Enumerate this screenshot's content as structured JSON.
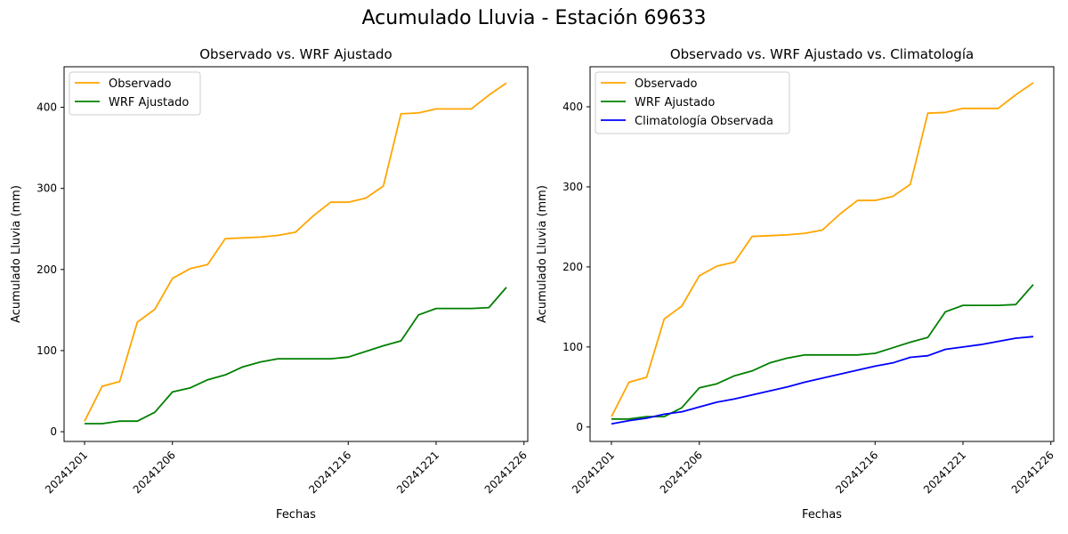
{
  "suptitle": "Acumulado Lluvia - Estación 69633",
  "chart_data": [
    {
      "type": "line",
      "title": "Observado vs. WRF Ajustado",
      "xlabel": "Fechas",
      "ylabel": "Acumulado Lluvia (mm)",
      "x": [
        "20241201",
        "20241202",
        "20241203",
        "20241204",
        "20241205",
        "20241206",
        "20241207",
        "20241208",
        "20241209",
        "20241210",
        "20241211",
        "20241212",
        "20241213",
        "20241214",
        "20241215",
        "20241216",
        "20241217",
        "20241218",
        "20241219",
        "20241220",
        "20241221",
        "20241222",
        "20241223",
        "20241224",
        "20241225"
      ],
      "xtick_labels": [
        "20241201",
        "20241206",
        "20241216",
        "20241221",
        "20241226"
      ],
      "yticks": [
        0,
        100,
        200,
        300,
        400
      ],
      "ylim": [
        -12,
        450
      ],
      "legend": "top-left",
      "grid": false,
      "series": [
        {
          "name": "Observado",
          "color": "#ffa500",
          "values": [
            13,
            56,
            62,
            135,
            151,
            189,
            201,
            206,
            238,
            239,
            240,
            242,
            246,
            266,
            283,
            283,
            288,
            303,
            392,
            393,
            398,
            398,
            398,
            415,
            430
          ]
        },
        {
          "name": "WRF Ajustado",
          "color": "#008000",
          "values": [
            10,
            10,
            13,
            13,
            24,
            49,
            54,
            64,
            70,
            80,
            86,
            90,
            90,
            90,
            90,
            92,
            99,
            106,
            112,
            144,
            152,
            152,
            152,
            153,
            178
          ]
        }
      ]
    },
    {
      "type": "line",
      "title": "Observado vs. WRF Ajustado vs. Climatología",
      "xlabel": "Fechas",
      "ylabel": "Acumulado Lluvia (mm)",
      "x": [
        "20241201",
        "20241202",
        "20241203",
        "20241204",
        "20241205",
        "20241206",
        "20241207",
        "20241208",
        "20241209",
        "20241210",
        "20241211",
        "20241212",
        "20241213",
        "20241214",
        "20241215",
        "20241216",
        "20241217",
        "20241218",
        "20241219",
        "20241220",
        "20241221",
        "20241222",
        "20241223",
        "20241224",
        "20241225"
      ],
      "xtick_labels": [
        "20241201",
        "20241206",
        "20241216",
        "20241221",
        "20241226"
      ],
      "yticks": [
        0,
        100,
        200,
        300,
        400
      ],
      "ylim": [
        -18,
        450
      ],
      "legend": "top-left",
      "grid": false,
      "series": [
        {
          "name": "Observado",
          "color": "#ffa500",
          "values": [
            13,
            56,
            62,
            135,
            151,
            189,
            201,
            206,
            238,
            239,
            240,
            242,
            246,
            266,
            283,
            283,
            288,
            303,
            392,
            393,
            398,
            398,
            398,
            415,
            430
          ]
        },
        {
          "name": "WRF Ajustado",
          "color": "#008000",
          "values": [
            10,
            10,
            13,
            13,
            24,
            49,
            54,
            64,
            70,
            80,
            86,
            90,
            90,
            90,
            90,
            92,
            99,
            106,
            112,
            144,
            152,
            152,
            152,
            153,
            178
          ]
        },
        {
          "name": "Climatología Observada",
          "color": "#0000ff",
          "values": [
            4,
            8,
            11,
            16,
            19,
            25,
            31,
            35,
            40,
            45,
            50,
            56,
            61,
            66,
            71,
            76,
            80,
            87,
            89,
            97,
            100,
            103,
            107,
            111,
            113
          ]
        }
      ]
    }
  ]
}
